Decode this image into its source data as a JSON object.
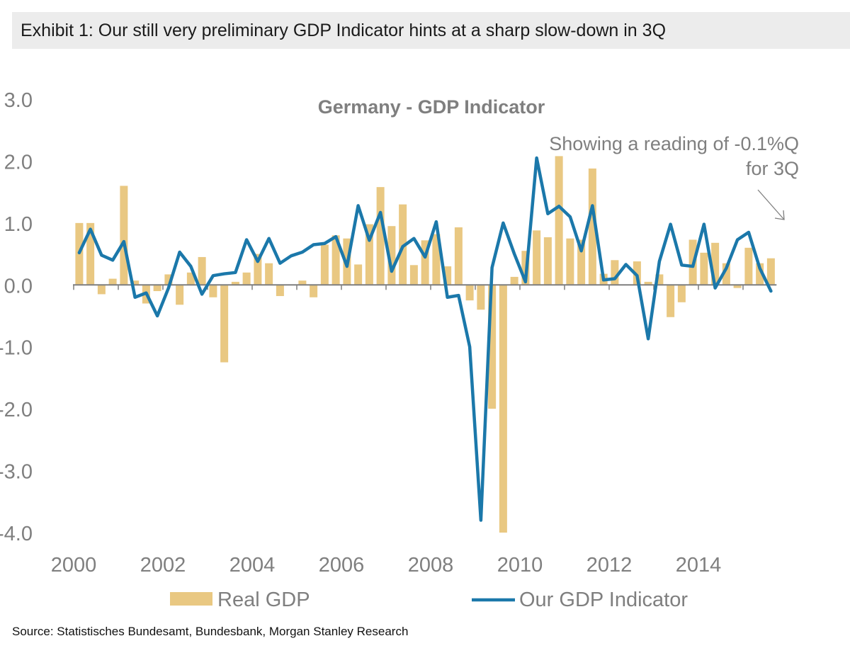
{
  "header": {
    "exhibit_title": "Exhibit 1:  Our still very preliminary GDP Indicator hints at a sharp slow-down in 3Q"
  },
  "source": "Source: Statistisches Bundesamt, Bundesbank, Morgan Stanley Research",
  "colors": {
    "bar": "#e9c882",
    "line": "#1b78aa",
    "axis": "#7f7f7f",
    "text": "#7f7f7f",
    "header_bg": "#ececec"
  },
  "chart_data": {
    "type": "bar+line",
    "title": "Germany - GDP Indicator",
    "annotation": [
      "Showing a reading of -0.1%Q",
      "for 3Q"
    ],
    "ylim": [
      -4.0,
      3.0
    ],
    "yticks": [
      "3.0",
      "2.0",
      "1.0",
      "0.0",
      "-1.0",
      "-2.0",
      "-3.0",
      "-4.0"
    ],
    "ytick_values": [
      3,
      2,
      1,
      0,
      -1,
      -2,
      -3,
      -4
    ],
    "xticks": [
      "2000",
      "2002",
      "2004",
      "2006",
      "2008",
      "2010",
      "2012",
      "2014"
    ],
    "x_start_year": 2000,
    "quarters_per_year": 4,
    "categories": [
      "2000Q1",
      "2000Q2",
      "2000Q3",
      "2000Q4",
      "2001Q1",
      "2001Q2",
      "2001Q3",
      "2001Q4",
      "2002Q1",
      "2002Q2",
      "2002Q3",
      "2002Q4",
      "2003Q1",
      "2003Q2",
      "2003Q3",
      "2003Q4",
      "2004Q1",
      "2004Q2",
      "2004Q3",
      "2004Q4",
      "2005Q1",
      "2005Q2",
      "2005Q3",
      "2005Q4",
      "2006Q1",
      "2006Q2",
      "2006Q3",
      "2006Q4",
      "2007Q1",
      "2007Q2",
      "2007Q3",
      "2007Q4",
      "2008Q1",
      "2008Q2",
      "2008Q3",
      "2008Q4",
      "2009Q1",
      "2009Q2",
      "2009Q3",
      "2009Q4",
      "2010Q1",
      "2010Q2",
      "2010Q3",
      "2010Q4",
      "2011Q1",
      "2011Q2",
      "2011Q3",
      "2011Q4",
      "2012Q1",
      "2012Q2",
      "2012Q3",
      "2012Q4",
      "2013Q1",
      "2013Q2",
      "2013Q3",
      "2013Q4",
      "2014Q1",
      "2014Q2",
      "2014Q3",
      "2014Q4",
      "2015Q1",
      "2015Q2",
      "2015Q3"
    ],
    "series": [
      {
        "name": "Real GDP",
        "kind": "bar",
        "values": [
          1.0,
          1.0,
          -0.15,
          0.1,
          1.6,
          0.07,
          -0.3,
          -0.1,
          0.17,
          -0.32,
          0.2,
          0.45,
          -0.2,
          -1.25,
          0.05,
          0.2,
          0.5,
          0.35,
          -0.18,
          0.0,
          0.07,
          -0.2,
          0.65,
          0.8,
          0.75,
          0.33,
          0.98,
          1.58,
          0.95,
          1.3,
          0.32,
          0.72,
          0.82,
          0.3,
          0.93,
          -0.25,
          -0.4,
          -2.0,
          -4.0,
          0.13,
          0.55,
          0.88,
          0.77,
          2.08,
          0.75,
          0.73,
          1.88,
          0.18,
          0.4,
          0.0,
          0.38,
          0.05,
          0.17,
          -0.52,
          -0.28,
          0.73,
          0.52,
          0.68,
          0.35,
          -0.05,
          0.6,
          0.35,
          0.43
        ]
      },
      {
        "name": "Our GDP Indicator",
        "kind": "line",
        "values": [
          0.52,
          0.9,
          0.48,
          0.4,
          0.7,
          -0.2,
          -0.13,
          -0.5,
          -0.05,
          0.53,
          0.3,
          -0.15,
          0.15,
          0.18,
          0.2,
          0.73,
          0.38,
          0.75,
          0.35,
          0.47,
          0.53,
          0.65,
          0.67,
          0.78,
          0.3,
          1.28,
          0.72,
          1.17,
          0.22,
          0.62,
          0.75,
          0.45,
          1.02,
          -0.2,
          -0.17,
          -1.0,
          -3.8,
          0.28,
          1.0,
          0.5,
          0.05,
          2.05,
          1.15,
          1.27,
          1.1,
          0.55,
          1.28,
          0.08,
          0.1,
          0.33,
          0.15,
          -0.87,
          0.38,
          0.98,
          0.32,
          0.3,
          0.98,
          -0.05,
          0.27,
          0.73,
          0.85,
          0.27,
          -0.1
        ]
      }
    ],
    "legend": [
      "Real GDP",
      "Our GDP Indicator"
    ],
    "legend_position": "bottom"
  }
}
